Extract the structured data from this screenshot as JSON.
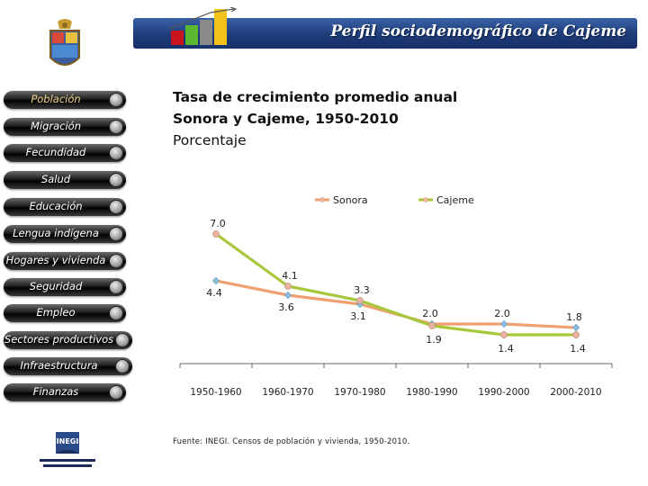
{
  "header": {
    "title": "Perfil sociodemográfico de Cajeme"
  },
  "nav": {
    "items": [
      {
        "label": "Población",
        "active": true
      },
      {
        "label": "Migración"
      },
      {
        "label": "Fecundidad"
      },
      {
        "label": "Salud"
      },
      {
        "label": "Educación"
      },
      {
        "label": "Lengua indígena"
      },
      {
        "label": "Hogares y vivienda"
      },
      {
        "label": "Seguridad"
      },
      {
        "label": "Empleo"
      },
      {
        "label": "Sectores productivos"
      },
      {
        "label": "Infraestructura"
      },
      {
        "label": "Finanzas"
      }
    ]
  },
  "chart_title": {
    "line1": "Tasa de crecimiento promedio anual",
    "line2": "Sonora y Cajeme, 1950-2010",
    "line3": "Porcentaje"
  },
  "chart_data": {
    "type": "line",
    "categories": [
      "1950-1960",
      "1960-1970",
      "1970-1980",
      "1980-1990",
      "1990-2000",
      "2000-2010"
    ],
    "series": [
      {
        "name": "Sonora",
        "color": "#f0a070",
        "values": [
          4.4,
          3.6,
          3.1,
          2.0,
          2.0,
          1.8
        ]
      },
      {
        "name": "Cajeme",
        "color": "#a8c83c",
        "values": [
          7.0,
          4.1,
          3.3,
          1.9,
          1.4,
          1.4
        ]
      }
    ],
    "legend": "top",
    "ylim": [
      0.5,
      7.5
    ],
    "grid": false
  },
  "source": "Fuente: INEGI. Censos de población y vivienda, 1950-2010.",
  "logo": {
    "text": "INEGI"
  }
}
